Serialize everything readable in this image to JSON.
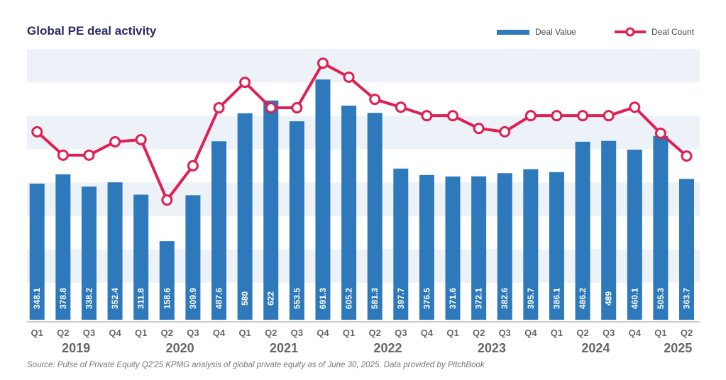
{
  "chart_data": {
    "type": "bar+line",
    "title": "Global PE deal activity",
    "legend": {
      "position": "top-right",
      "entries": [
        "Deal Value",
        "Deal Count"
      ]
    },
    "x": {
      "quarters": [
        "Q1",
        "Q2",
        "Q3",
        "Q4",
        "Q1",
        "Q2",
        "Q3",
        "Q4",
        "Q1",
        "Q2",
        "Q3",
        "Q4",
        "Q1",
        "Q2",
        "Q3",
        "Q4",
        "Q1",
        "Q2",
        "Q3",
        "Q4",
        "Q1",
        "Q2",
        "Q3",
        "Q4",
        "Q1",
        "Q2"
      ],
      "years": [
        {
          "label": "2019",
          "quarters": 4
        },
        {
          "label": "2020",
          "quarters": 4
        },
        {
          "label": "2021",
          "quarters": 4
        },
        {
          "label": "2022",
          "quarters": 4
        },
        {
          "label": "2023",
          "quarters": 4
        },
        {
          "label": "2024",
          "quarters": 4
        },
        {
          "label": "2025",
          "quarters": 2
        }
      ]
    },
    "series": [
      {
        "name": "Deal Value",
        "type": "bar",
        "color": "#2e78bc",
        "values": [
          348.1,
          378.8,
          338.2,
          352.4,
          311.8,
          158.6,
          309.9,
          487.6,
          580,
          622,
          553.5,
          691.3,
          605.2,
          581.3,
          397.7,
          376.5,
          371.6,
          372.1,
          382.6,
          395.7,
          386.1,
          486.2,
          489,
          460.1,
          505.3,
          363.7
        ],
        "labels": [
          "348.1",
          "378.8",
          "338.2",
          "352.4",
          "311.8",
          "158.6",
          "309.9",
          "487.6",
          "580",
          "622",
          "553.5",
          "691.3",
          "605.2",
          "581.3",
          "397.7",
          "376.5",
          "371.6",
          "372.1",
          "382.6",
          "395.7",
          "386.1",
          "486.2",
          "489",
          "460.1",
          "505.3",
          "363.7"
        ]
      },
      {
        "name": "Deal Count",
        "type": "line",
        "color": "#e01f52",
        "values": [
          519,
          442,
          442,
          486,
          493,
          294,
          407,
          598,
          682,
          598,
          598,
          745,
          699,
          626,
          600,
          572,
          572,
          530,
          519,
          572,
          572,
          572,
          572,
          600,
          514,
          439
        ]
      }
    ],
    "grid": "alternating horizontal bands",
    "band_color": "#edf2f9"
  },
  "source": "Source: Pulse of Private Equity Q2'25 KPMG analysis of global private equity as of June 30, 2025. Data provided by PitchBook"
}
